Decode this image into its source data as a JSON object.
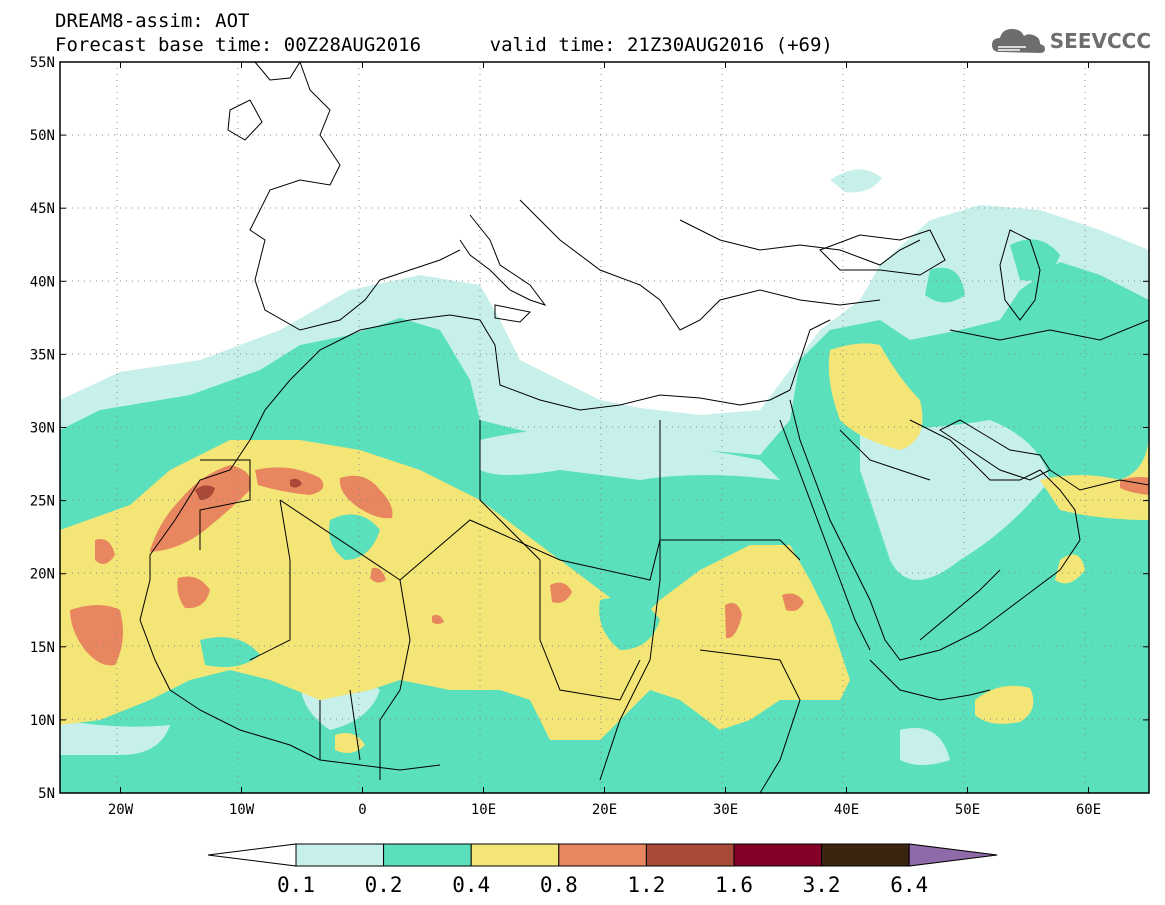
{
  "header": {
    "line1": "DREAM8-assim: AOT",
    "line2": "Forecast base time: 00Z28AUG2016      valid time: 21Z30AUG2016 (+69)"
  },
  "logo": {
    "text": "SEEVCCC",
    "icon": "cloud-icon",
    "color": "#6d6d6d"
  },
  "map": {
    "projection": "equirectangular",
    "lon_range": [
      -25,
      65
    ],
    "lat_range": [
      5,
      55
    ],
    "grid": "dotted",
    "lon_ticks": [
      "20W",
      "10W",
      "0",
      "10E",
      "20E",
      "30E",
      "40E",
      "50E",
      "60E"
    ],
    "lat_ticks": [
      "55N",
      "50N",
      "45N",
      "40N",
      "35N",
      "30N",
      "25N",
      "20N",
      "15N",
      "10N",
      "5N"
    ]
  },
  "colorbar": {
    "levels": [
      "0.1",
      "0.2",
      "0.4",
      "0.8",
      "1.2",
      "1.6",
      "3.2",
      "6.4"
    ],
    "colors": [
      "#c8f0ea",
      "#5ae0bc",
      "#f4e676",
      "#e8875f",
      "#a94a38",
      "#830026",
      "#3b2410",
      "#8e6aa8"
    ],
    "under_color": "#ffffff"
  }
}
